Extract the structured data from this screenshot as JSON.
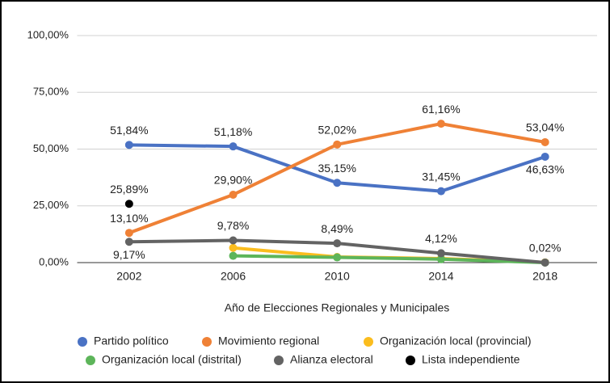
{
  "chart_data": {
    "type": "line",
    "x_label": "Año de Elecciones Regionales y Municipales",
    "categories": [
      "2002",
      "2006",
      "2010",
      "2014",
      "2018"
    ],
    "ylim": [
      0,
      100
    ],
    "yticks": [
      {
        "value": 0,
        "label": "0,00%"
      },
      {
        "value": 25,
        "label": "25,00%"
      },
      {
        "value": 50,
        "label": "50,00%"
      },
      {
        "value": 75,
        "label": "75,00%"
      },
      {
        "value": 100,
        "label": "100,00%"
      }
    ],
    "grid": true,
    "legend": "bottom",
    "series": [
      {
        "name": "Partido político",
        "color": "#4a72c4",
        "values": [
          51.84,
          51.18,
          35.15,
          31.45,
          46.63
        ],
        "value_labels": [
          "51,84%",
          "51,18%",
          "35,15%",
          "31,45%",
          "46,63%"
        ]
      },
      {
        "name": "Movimiento regional",
        "color": "#ef8136",
        "values": [
          13.1,
          29.9,
          52.02,
          61.16,
          53.04
        ],
        "value_labels": [
          "13,10%",
          "29,90%",
          "52,02%",
          "61,16%",
          "53,04%"
        ]
      },
      {
        "name": "Organización local (provincial)",
        "color": "#fbbd1e",
        "values": [
          null,
          6.5,
          2.5,
          1.8,
          0.1
        ]
      },
      {
        "name": "Organización local (distrital)",
        "color": "#5db55a",
        "values": [
          null,
          3.0,
          2.3,
          1.5,
          0.0
        ]
      },
      {
        "name": "Alianza electoral",
        "color": "#636363",
        "values": [
          9.17,
          9.78,
          8.49,
          4.12,
          0.02
        ],
        "value_labels": [
          "9,17%",
          "9,78%",
          "8,49%",
          "4,12%",
          "0,02%"
        ]
      },
      {
        "name": "Lista independiente",
        "color": "#000000",
        "values": [
          25.89,
          null,
          null,
          null,
          null
        ],
        "value_labels": [
          "25,89%",
          null,
          null,
          null,
          null
        ]
      }
    ]
  }
}
